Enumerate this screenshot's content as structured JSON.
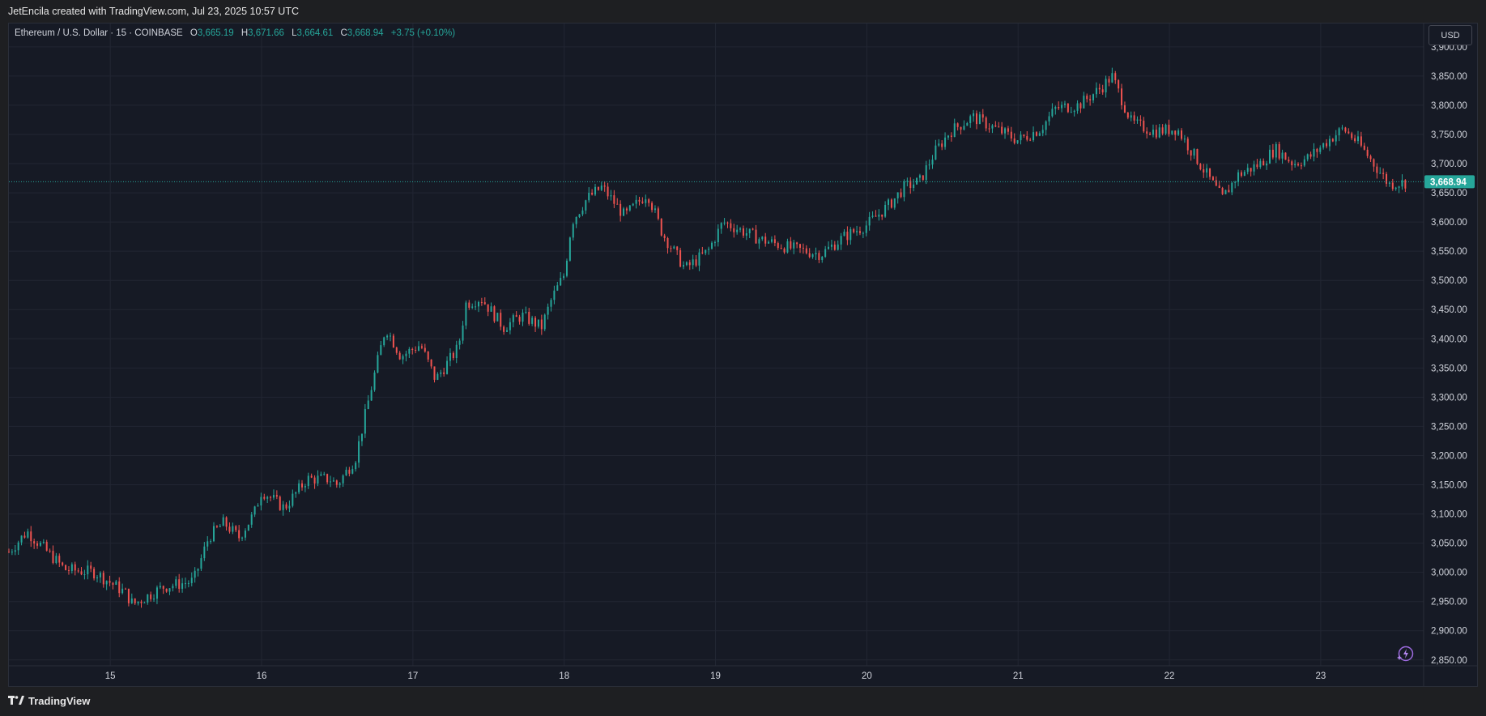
{
  "header": {
    "attribution": "JetEncila created with TradingView.com, Jul 23, 2025 10:57 UTC"
  },
  "legend": {
    "symbol": "Ethereum / U.S. Dollar · 15 · COINBASE",
    "o_label": "O",
    "o_value": "3,665.19",
    "h_label": "H",
    "h_value": "3,671.66",
    "l_label": "L",
    "l_value": "3,664.61",
    "c_label": "C",
    "c_value": "3,668.94",
    "change": "+3.75 (+0.10%)"
  },
  "currency_button": "USD",
  "footer": {
    "brand": "TradingView",
    "brand_icon": "tradingview-logo-icon"
  },
  "quick_action_icon": "lightning-icon",
  "colors": {
    "background": "#161a25",
    "grid": "#222633",
    "up": "#26a69a",
    "down": "#ef5350",
    "axis_text": "#d1d4dc",
    "price_badge": "#26a69a"
  },
  "chart_data": {
    "type": "candlestick",
    "symbol": "ETHUSD",
    "interval": "15",
    "exchange": "COINBASE",
    "current_price": 3668.94,
    "current_price_label": "3,668.94",
    "ylim": [
      2840,
      3940
    ],
    "y_ticks": [
      2850,
      2900,
      2950,
      3000,
      3050,
      3100,
      3150,
      3200,
      3250,
      3300,
      3350,
      3400,
      3450,
      3500,
      3550,
      3600,
      3650,
      3700,
      3750,
      3800,
      3850,
      3900
    ],
    "y_tick_labels": [
      "2,850.00",
      "2,900.00",
      "2,950.00",
      "3,000.00",
      "3,050.00",
      "3,100.00",
      "3,150.00",
      "3,200.00",
      "3,250.00",
      "3,300.00",
      "3,350.00",
      "3,400.00",
      "3,450.00",
      "3,500.00",
      "3,550.00",
      "3,600.00",
      "3,650.00",
      "3,700.00",
      "3,750.00",
      "3,800.00",
      "3,850.00",
      "3,900.00"
    ],
    "x_ticks": [
      "15",
      "16",
      "17",
      "18",
      "19",
      "20",
      "21",
      "22",
      "23"
    ],
    "x_tick_days": [
      15,
      16,
      17,
      18,
      19,
      20,
      21,
      22,
      23
    ],
    "x_range_days": [
      14.33,
      23.6
    ],
    "price_path": [
      [
        14.33,
        3035
      ],
      [
        14.45,
        3070
      ],
      [
        14.7,
        3005
      ],
      [
        14.9,
        3000
      ],
      [
        15.1,
        2965
      ],
      [
        15.15,
        2945
      ],
      [
        15.35,
        2975
      ],
      [
        15.55,
        2985
      ],
      [
        15.65,
        3060
      ],
      [
        15.75,
        3085
      ],
      [
        15.85,
        3060
      ],
      [
        15.95,
        3100
      ],
      [
        16.0,
        3140
      ],
      [
        16.15,
        3110
      ],
      [
        16.3,
        3160
      ],
      [
        16.45,
        3160
      ],
      [
        16.5,
        3150
      ],
      [
        16.62,
        3195
      ],
      [
        16.72,
        3310
      ],
      [
        16.82,
        3420
      ],
      [
        16.92,
        3370
      ],
      [
        17.05,
        3390
      ],
      [
        17.15,
        3330
      ],
      [
        17.3,
        3385
      ],
      [
        17.35,
        3460
      ],
      [
        17.45,
        3470
      ],
      [
        17.6,
        3420
      ],
      [
        17.72,
        3440
      ],
      [
        17.85,
        3420
      ],
      [
        17.92,
        3470
      ],
      [
        18.0,
        3510
      ],
      [
        18.05,
        3600
      ],
      [
        18.15,
        3640
      ],
      [
        18.25,
        3660
      ],
      [
        18.4,
        3610
      ],
      [
        18.55,
        3650
      ],
      [
        18.65,
        3580
      ],
      [
        18.8,
        3520
      ],
      [
        18.95,
        3550
      ],
      [
        19.05,
        3600
      ],
      [
        19.3,
        3570
      ],
      [
        19.5,
        3555
      ],
      [
        19.7,
        3545
      ],
      [
        19.85,
        3575
      ],
      [
        20.0,
        3595
      ],
      [
        20.15,
        3630
      ],
      [
        20.25,
        3660
      ],
      [
        20.35,
        3670
      ],
      [
        20.45,
        3720
      ],
      [
        20.55,
        3755
      ],
      [
        20.7,
        3780
      ],
      [
        20.85,
        3760
      ],
      [
        21.0,
        3740
      ],
      [
        21.15,
        3760
      ],
      [
        21.25,
        3795
      ],
      [
        21.4,
        3800
      ],
      [
        21.55,
        3830
      ],
      [
        21.62,
        3850
      ],
      [
        21.75,
        3770
      ],
      [
        21.9,
        3755
      ],
      [
        22.05,
        3760
      ],
      [
        22.15,
        3720
      ],
      [
        22.3,
        3660
      ],
      [
        22.35,
        3640
      ],
      [
        22.45,
        3680
      ],
      [
        22.6,
        3700
      ],
      [
        22.7,
        3725
      ],
      [
        22.82,
        3700
      ],
      [
        22.92,
        3710
      ],
      [
        23.05,
        3740
      ],
      [
        23.15,
        3760
      ],
      [
        23.25,
        3735
      ],
      [
        23.35,
        3700
      ],
      [
        23.45,
        3665
      ],
      [
        23.6,
        3668.94
      ]
    ]
  }
}
